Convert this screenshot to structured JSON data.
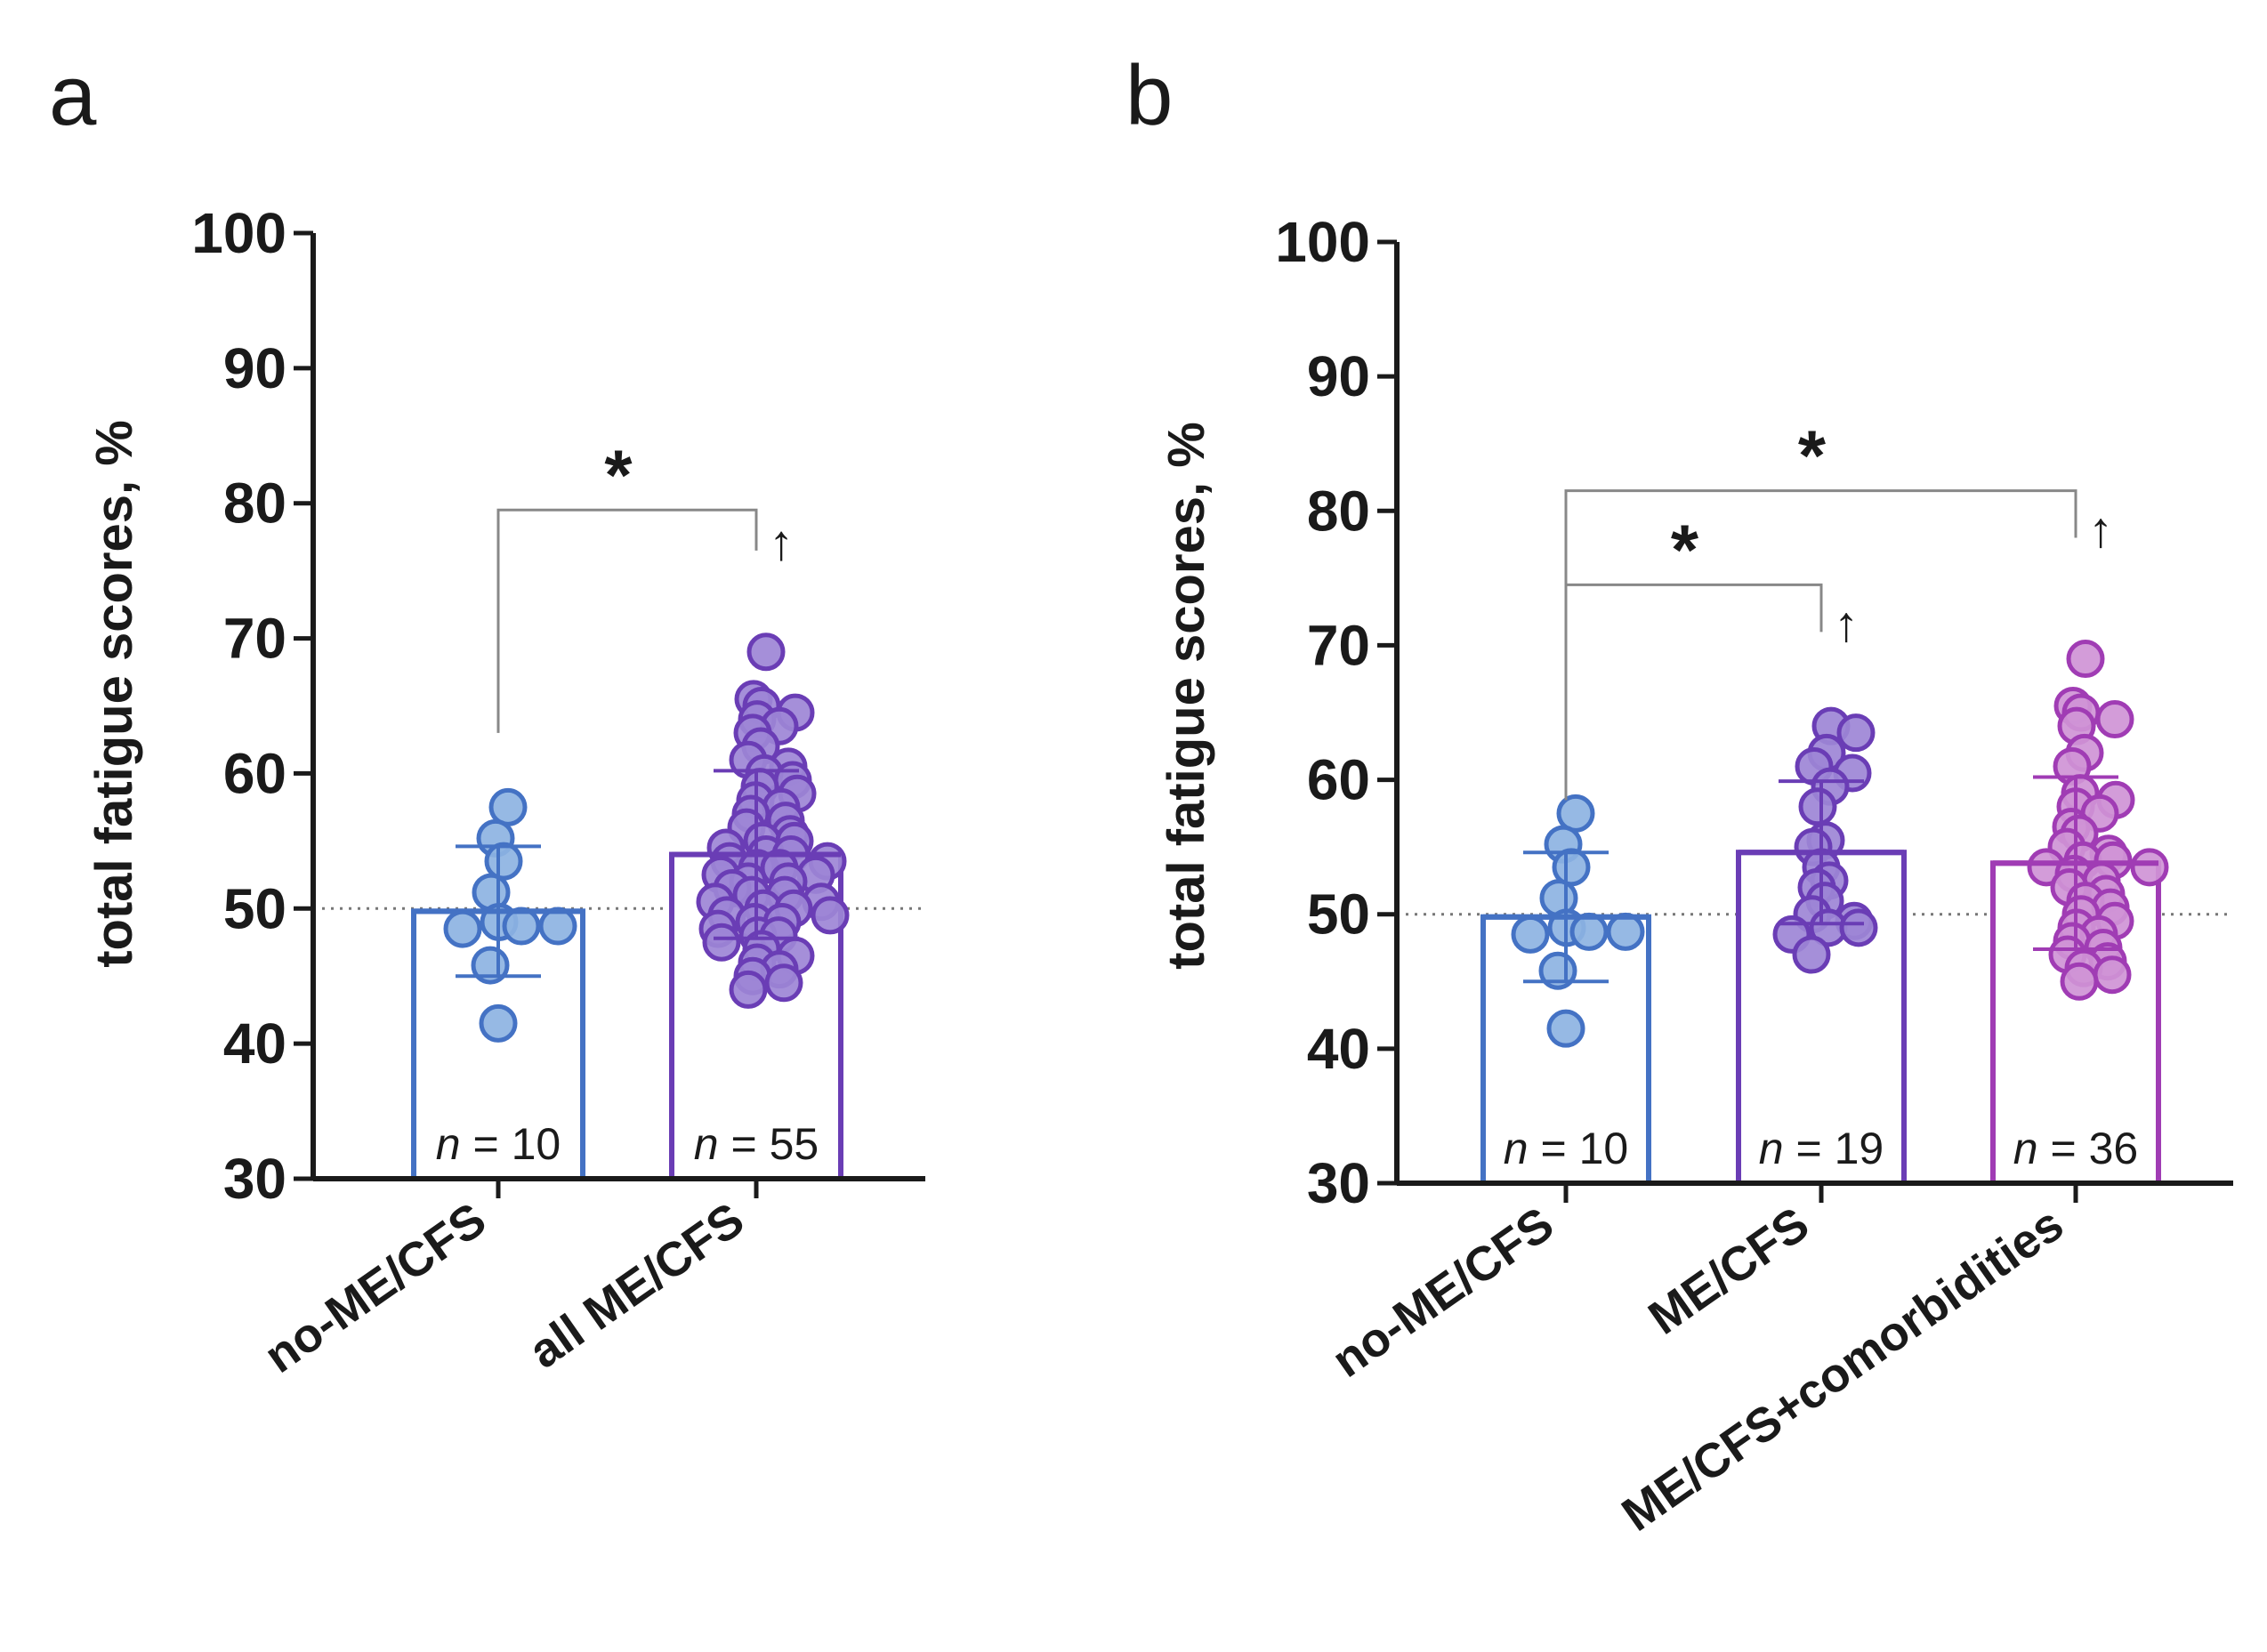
{
  "chart_data": [
    {
      "panel": "a",
      "type": "bar",
      "ylabel": "total fatigue scores, %",
      "ylim": [
        30,
        100
      ],
      "yticks": [
        30,
        40,
        50,
        60,
        70,
        80,
        90,
        100
      ],
      "reference_line": 50,
      "categories": [
        "no-ME/CFS",
        "all ME/CFS"
      ],
      "colors": [
        "#4472c4",
        "#6a3db5"
      ],
      "fills": [
        "#8db3e2",
        "#9d86d6"
      ],
      "means": [
        49.8,
        54.0
      ],
      "sd": [
        4.8,
        6.2
      ],
      "n_labels": [
        {
          "italic": "n",
          "rest": " = 10"
        },
        {
          "italic": "n",
          "rest": " = 55"
        }
      ],
      "points": [
        [
          57.5,
          55.2,
          53.5,
          51.2,
          49.0,
          48.7,
          48.5,
          48.7,
          45.8,
          41.5
        ],
        [
          69.0,
          65.5,
          65.0,
          64.5,
          64.0,
          63.5,
          63.0,
          62.0,
          61.0,
          60.5,
          60.0,
          59.5,
          59.0,
          58.5,
          58.0,
          57.5,
          57.0,
          56.5,
          56.0,
          55.5,
          55.0,
          55.0,
          54.5,
          54.0,
          54.0,
          53.5,
          53.5,
          53.0,
          53.0,
          52.5,
          52.5,
          52.0,
          52.0,
          51.5,
          51.0,
          51.0,
          50.5,
          50.5,
          50.0,
          50.0,
          49.5,
          49.5,
          49.0,
          49.0,
          48.5,
          48.0,
          48.0,
          47.5,
          47.0,
          46.5,
          46.0,
          45.5,
          45.0,
          44.5,
          44.0
        ]
      ],
      "comparisons": [
        {
          "from": 0,
          "to": 1,
          "label": "*",
          "arrow": "↑",
          "y": 79.5,
          "drop_from": 63,
          "drop_to": 76.5
        }
      ]
    },
    {
      "panel": "b",
      "type": "bar",
      "ylabel": "total fatigue scores, %",
      "ylim": [
        30,
        100
      ],
      "yticks": [
        30,
        40,
        50,
        60,
        70,
        80,
        90,
        100
      ],
      "reference_line": 50,
      "categories": [
        "no-ME/CFS",
        "ME/CFS",
        "ME/CFS+comorbidities"
      ],
      "colors": [
        "#4472c4",
        "#6a3db5",
        "#a03cb4"
      ],
      "fills": [
        "#8db3e2",
        "#9d86d6",
        "#cf94d6"
      ],
      "means": [
        49.8,
        54.6,
        53.8
      ],
      "sd": [
        4.8,
        5.3,
        6.4
      ],
      "n_labels": [
        {
          "italic": "n",
          "rest": " = 10"
        },
        {
          "italic": "n",
          "rest": " = 19"
        },
        {
          "italic": "n",
          "rest": " = 36"
        }
      ],
      "points": [
        [
          57.5,
          55.2,
          53.5,
          51.2,
          49.0,
          48.7,
          48.5,
          48.7,
          45.8,
          41.5
        ],
        [
          64.0,
          63.5,
          62.0,
          61.0,
          60.5,
          59.5,
          58.0,
          55.5,
          55.0,
          53.5,
          52.5,
          52.0,
          51.0,
          50.0,
          49.5,
          49.0,
          49.0,
          48.5,
          47.0
        ],
        [
          69.0,
          65.5,
          65.0,
          64.5,
          64.0,
          62.0,
          61.0,
          59.0,
          58.5,
          58.0,
          57.5,
          56.5,
          56.0,
          55.0,
          54.5,
          54.0,
          54.0,
          53.5,
          53.5,
          53.0,
          52.5,
          52.0,
          51.5,
          51.0,
          50.5,
          50.0,
          49.5,
          49.0,
          48.5,
          48.0,
          47.5,
          47.0,
          46.5,
          46.0,
          45.5,
          45.0
        ]
      ],
      "comparisons": [
        {
          "from": 0,
          "to": 2,
          "label": "*",
          "arrow": "↑",
          "y": 81.5,
          "drop_from": 58.5,
          "drop_to": 78.0
        },
        {
          "from": 0,
          "to": 1,
          "label": "*",
          "arrow": "↑",
          "y": 74.5,
          "drop_from": 58.5,
          "drop_to": 71.0
        }
      ]
    }
  ]
}
